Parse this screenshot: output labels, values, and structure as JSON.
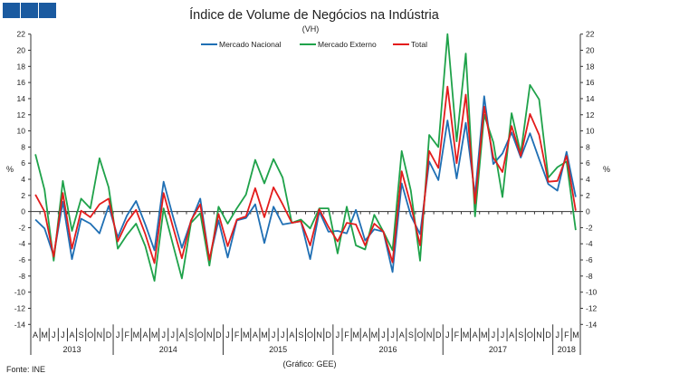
{
  "logo": {
    "color": "#1a5aa0"
  },
  "chart_data": {
    "type": "line",
    "title": "Índice de Volume de Negócios na Indústria",
    "subtitle": "(VH)",
    "ylabel": "%",
    "ylim": [
      -14,
      22
    ],
    "yticks": [
      22,
      20,
      18,
      16,
      14,
      12,
      10,
      8,
      6,
      4,
      2,
      0,
      -2,
      -4,
      -6,
      -8,
      -10,
      -12,
      -14
    ],
    "legend_position": "top",
    "grid": false,
    "years": [
      {
        "label": "2013",
        "months": [
          "A",
          "M",
          "J",
          "J",
          "A",
          "S",
          "O",
          "N",
          "D"
        ]
      },
      {
        "label": "2014",
        "months": [
          "J",
          "F",
          "M",
          "A",
          "M",
          "J",
          "J",
          "A",
          "S",
          "O",
          "N",
          "D"
        ]
      },
      {
        "label": "2015",
        "months": [
          "J",
          "F",
          "M",
          "A",
          "M",
          "J",
          "J",
          "A",
          "S",
          "O",
          "N",
          "D"
        ]
      },
      {
        "label": "2016",
        "months": [
          "J",
          "F",
          "M",
          "A",
          "M",
          "J",
          "J",
          "A",
          "S",
          "O",
          "N",
          "D"
        ]
      },
      {
        "label": "2017",
        "months": [
          "J",
          "F",
          "M",
          "A",
          "M",
          "J",
          "J",
          "A",
          "S",
          "O",
          "N",
          "D"
        ]
      },
      {
        "label": "2018",
        "months": [
          "J",
          "F",
          "M"
        ]
      }
    ],
    "series": [
      {
        "name": "Mercado Nacional",
        "color": "#1f6fb4",
        "values": [
          -1.0,
          -2.1,
          -5.5,
          1.2,
          -5.9,
          -0.9,
          -1.5,
          -2.7,
          0.7,
          -3.2,
          -0.5,
          1.3,
          -1.6,
          -4.8,
          3.7,
          -0.5,
          -4.5,
          -1.2,
          1.6,
          -6.0,
          -1.1,
          -5.7,
          -1.1,
          -0.8,
          0.9,
          -3.9,
          0.6,
          -1.6,
          -1.4,
          -1.2,
          -5.9,
          0.0,
          -2.5,
          -2.4,
          -2.7,
          0.2,
          -3.6,
          -2.2,
          -2.5,
          -7.5,
          3.5,
          -0.5,
          -2.8,
          6.2,
          3.9,
          11.3,
          4.1,
          11.0,
          2.0,
          14.3,
          5.9,
          7.2,
          9.8,
          6.7,
          9.7,
          6.5,
          3.4,
          2.6,
          7.4,
          1.8
        ]
      },
      {
        "name": "Mercado Externo",
        "color": "#1fa24a",
        "values": [
          7.1,
          2.7,
          -6.1,
          3.8,
          -2.4,
          1.6,
          0.4,
          6.6,
          3.0,
          -4.6,
          -2.9,
          -1.5,
          -4.3,
          -8.6,
          0.4,
          -4.0,
          -8.3,
          -1.4,
          -0.2,
          -6.7,
          0.6,
          -1.5,
          0.4,
          2.1,
          6.4,
          3.5,
          6.5,
          4.2,
          -1.4,
          -1.0,
          -2.1,
          0.4,
          0.4,
          -5.2,
          0.6,
          -4.2,
          -4.7,
          -0.4,
          -2.5,
          -4.8,
          7.5,
          2.6,
          -6.1,
          9.5,
          8.0,
          22.0,
          8.7,
          19.6,
          -0.6,
          12.0,
          8.6,
          1.8,
          12.2,
          7.2,
          15.7,
          13.9,
          4.2,
          5.5,
          6.2,
          -2.3
        ]
      },
      {
        "name": "Total",
        "color": "#e31c1c",
        "values": [
          2.1,
          0.0,
          -5.6,
          2.3,
          -4.6,
          0.1,
          -0.7,
          0.9,
          1.6,
          -3.7,
          -1.3,
          0.2,
          -2.8,
          -6.4,
          2.3,
          -1.8,
          -5.8,
          -1.1,
          0.9,
          -6.0,
          -0.3,
          -4.3,
          -1.0,
          -0.6,
          2.9,
          -0.7,
          3.0,
          0.9,
          -1.4,
          -1.2,
          -4.2,
          0.3,
          -1.9,
          -3.7,
          -1.4,
          -1.6,
          -4.2,
          -1.5,
          -2.5,
          -6.3,
          5.0,
          0.8,
          -4.2,
          7.5,
          5.4,
          15.5,
          6.0,
          14.5,
          1.0,
          13.0,
          6.7,
          4.9,
          10.6,
          6.9,
          12.1,
          9.5,
          3.7,
          3.8,
          6.9,
          0.1
        ]
      }
    ]
  },
  "footer": {
    "source": "Fonte: INE",
    "credit": "(Gráfico: GEE)"
  }
}
